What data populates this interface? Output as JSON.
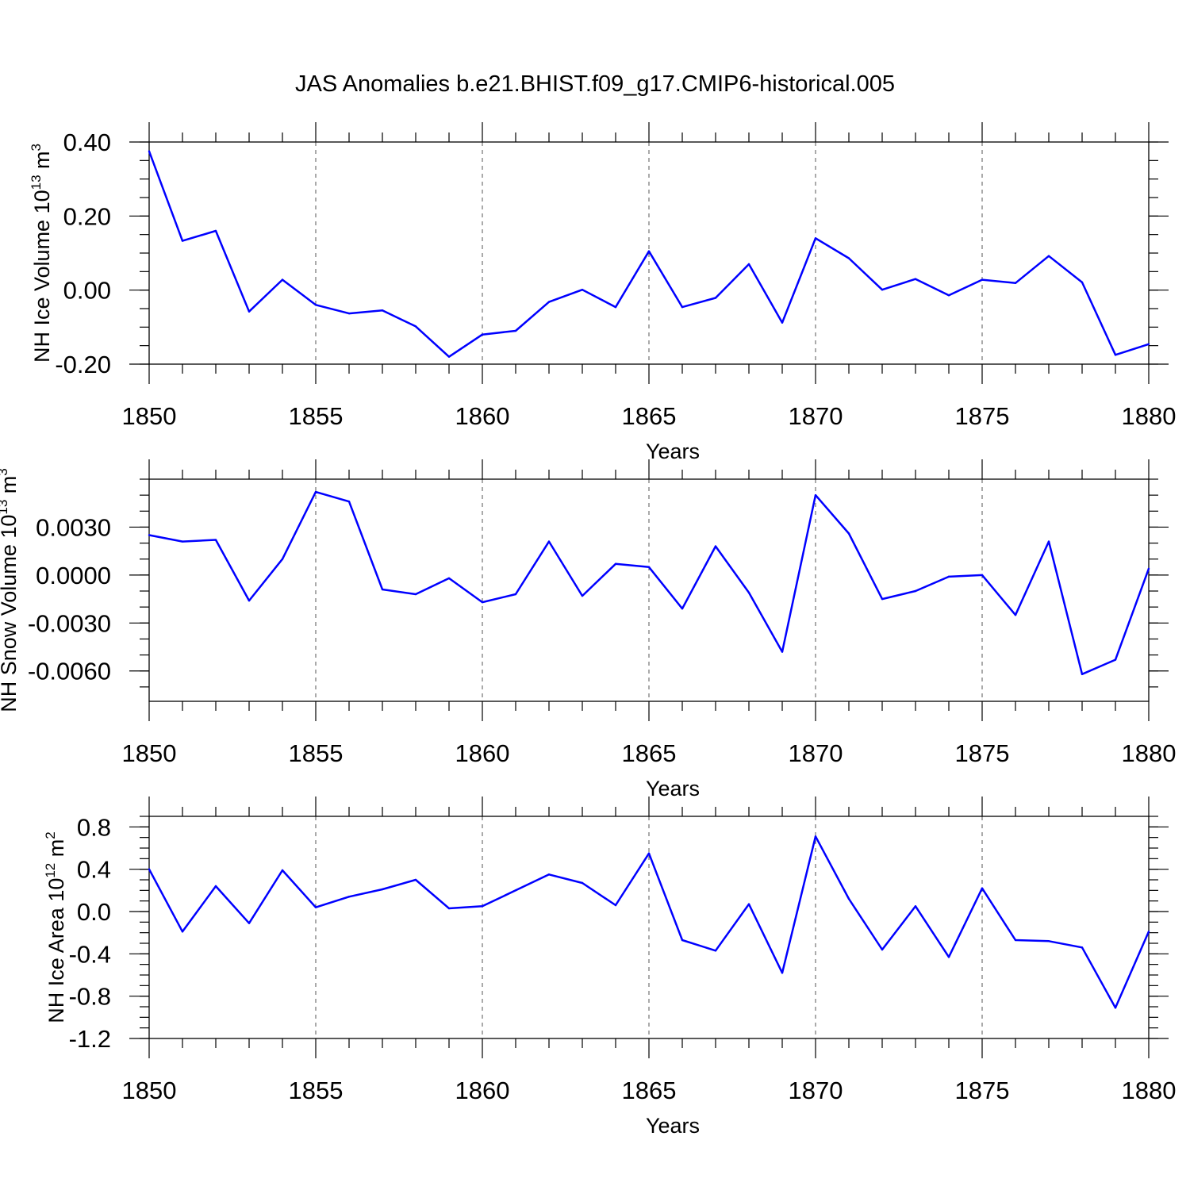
{
  "title": "JAS Anomalies b.e21.BHIST.f09_g17.CMIP6-historical.005",
  "colors": {
    "series": "#0000ff",
    "grid": "#555555",
    "axis": "#000000"
  },
  "chart_data": [
    {
      "type": "line",
      "title": "JAS Anomalies b.e21.BHIST.f09_g17.CMIP6-historical.005",
      "xlabel": "Years",
      "ylabel": {
        "text": "NH Ice Volume 10",
        "sup": "13",
        "unit": " m",
        "unit_sup": "3"
      },
      "xlim": [
        1850,
        1880
      ],
      "ylim": [
        -0.2,
        0.4
      ],
      "xticks": [
        "1850",
        "1855",
        "1860",
        "1865",
        "1870",
        "1875",
        "1880"
      ],
      "yticks": [
        "0.40",
        "0.20",
        "0.00",
        "-0.20"
      ],
      "grid": "vertical dashed at major x ticks",
      "x": [
        1850,
        1851,
        1852,
        1853,
        1854,
        1855,
        1856,
        1857,
        1858,
        1859,
        1860,
        1861,
        1862,
        1863,
        1864,
        1865,
        1866,
        1867,
        1868,
        1869,
        1870,
        1871,
        1872,
        1873,
        1874,
        1875,
        1876,
        1877,
        1878,
        1879,
        1880
      ],
      "values": [
        0.375,
        0.133,
        0.16,
        -0.058,
        0.028,
        -0.04,
        -0.063,
        -0.055,
        -0.098,
        -0.18,
        -0.12,
        -0.11,
        -0.032,
        0.001,
        -0.046,
        0.105,
        -0.046,
        -0.021,
        0.07,
        -0.088,
        0.14,
        0.086,
        0.001,
        0.03,
        -0.014,
        0.028,
        0.019,
        0.092,
        0.021,
        -0.175,
        -0.146
      ]
    },
    {
      "type": "line",
      "xlabel": "Years",
      "ylabel": {
        "text": "NH Snow Volume 10",
        "sup": "13",
        "unit": " m",
        "unit_sup": "3"
      },
      "xlim": [
        1850,
        1880
      ],
      "ylim": [
        -0.0079,
        0.006
      ],
      "xticks": [
        "1850",
        "1855",
        "1860",
        "1865",
        "1870",
        "1875",
        "1880"
      ],
      "yticks": [
        "0.0030",
        "0.0000",
        "-0.0030",
        "-0.0060"
      ],
      "grid": "vertical dashed at major x ticks",
      "x": [
        1850,
        1851,
        1852,
        1853,
        1854,
        1855,
        1856,
        1857,
        1858,
        1859,
        1860,
        1861,
        1862,
        1863,
        1864,
        1865,
        1866,
        1867,
        1868,
        1869,
        1870,
        1871,
        1872,
        1873,
        1874,
        1875,
        1876,
        1877,
        1878,
        1879,
        1880
      ],
      "values": [
        0.0025,
        0.0021,
        0.0022,
        -0.0016,
        0.001,
        0.0052,
        0.0046,
        -0.0009,
        -0.0012,
        -0.0002,
        -0.0017,
        -0.0012,
        0.0021,
        -0.0013,
        0.0007,
        0.0005,
        -0.0021,
        0.0018,
        -0.0011,
        -0.0048,
        0.005,
        0.0026,
        -0.0015,
        -0.001,
        -0.0001,
        0.0,
        -0.0025,
        0.0021,
        -0.0062,
        -0.0053,
        0.0004
      ]
    },
    {
      "type": "line",
      "xlabel": "Years",
      "ylabel": {
        "text": "NH Ice Area 10",
        "sup": "12",
        "unit": " m",
        "unit_sup": "2"
      },
      "xlim": [
        1850,
        1880
      ],
      "ylim": [
        -1.2,
        0.9
      ],
      "xticks": [
        "1850",
        "1855",
        "1860",
        "1865",
        "1870",
        "1875",
        "1880"
      ],
      "yticks": [
        "0.8",
        "0.4",
        "0.0",
        "-0.4",
        "-0.8",
        "-1.2"
      ],
      "grid": "vertical dashed at major x ticks",
      "x": [
        1850,
        1851,
        1852,
        1853,
        1854,
        1855,
        1856,
        1857,
        1858,
        1859,
        1860,
        1861,
        1862,
        1863,
        1864,
        1865,
        1866,
        1867,
        1868,
        1869,
        1870,
        1871,
        1872,
        1873,
        1874,
        1875,
        1876,
        1877,
        1878,
        1879,
        1880
      ],
      "values": [
        0.4,
        -0.19,
        0.24,
        -0.11,
        0.39,
        0.04,
        0.14,
        0.21,
        0.3,
        0.03,
        0.05,
        0.2,
        0.35,
        0.27,
        0.06,
        0.55,
        -0.27,
        -0.37,
        0.07,
        -0.58,
        0.71,
        0.12,
        -0.36,
        0.05,
        -0.43,
        0.22,
        -0.27,
        -0.28,
        -0.34,
        -0.91,
        -0.19
      ]
    }
  ]
}
